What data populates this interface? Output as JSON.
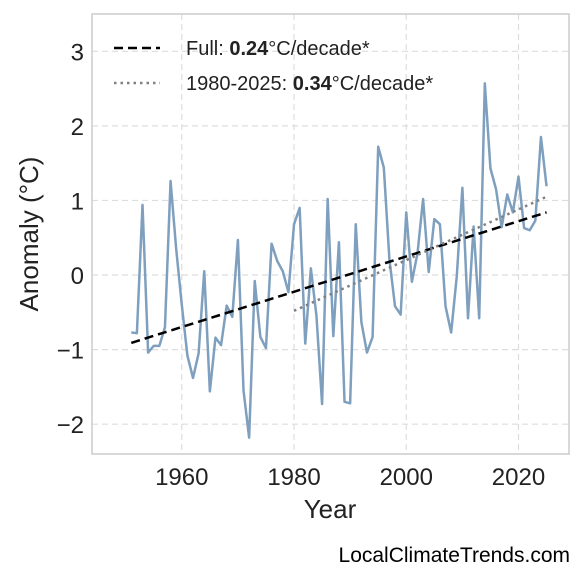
{
  "chart_data": {
    "type": "line",
    "xlabel": "Year",
    "ylabel": "Anomaly (°C)",
    "xlim": [
      1944,
      2029
    ],
    "ylim": [
      -2.4,
      3.5
    ],
    "x_ticks": [
      1960,
      1980,
      2000,
      2020
    ],
    "y_ticks": [
      -2,
      -1,
      0,
      1,
      2,
      3
    ],
    "y_tick_labels": [
      "−2",
      "−1",
      "0",
      "1",
      "2",
      "3"
    ],
    "grid": true,
    "legend_position": "top-left",
    "series": [
      {
        "style": "solid",
        "color": "#7f9fbf",
        "x": [
          1951,
          1952,
          1953,
          1954,
          1955,
          1956,
          1957,
          1958,
          1959,
          1960,
          1961,
          1962,
          1963,
          1964,
          1965,
          1966,
          1967,
          1968,
          1969,
          1970,
          1971,
          1972,
          1973,
          1974,
          1975,
          1976,
          1977,
          1978,
          1979,
          1980,
          1981,
          1982,
          1983,
          1984,
          1985,
          1986,
          1987,
          1988,
          1989,
          1990,
          1991,
          1992,
          1993,
          1994,
          1995,
          1996,
          1997,
          1998,
          1999,
          2000,
          2001,
          2002,
          2003,
          2004,
          2005,
          2006,
          2007,
          2008,
          2009,
          2010,
          2011,
          2012,
          2013,
          2014,
          2015,
          2016,
          2017,
          2018,
          2019,
          2020,
          2021,
          2022,
          2023,
          2024,
          2025
        ],
        "values": [
          -0.77,
          -0.78,
          0.94,
          -1.04,
          -0.95,
          -0.95,
          -0.7,
          1.26,
          0.35,
          -0.4,
          -1.08,
          -1.38,
          -1.05,
          0.05,
          -1.56,
          -0.84,
          -0.94,
          -0.41,
          -0.56,
          0.47,
          -1.55,
          -2.18,
          -0.08,
          -0.83,
          -0.98,
          0.42,
          0.19,
          0.05,
          -0.23,
          0.68,
          0.9,
          -0.92,
          0.09,
          -0.55,
          -1.73,
          1.02,
          -0.82,
          0.44,
          -1.7,
          -1.72,
          0.68,
          -0.63,
          -1.04,
          -0.83,
          1.72,
          1.44,
          0.21,
          -0.42,
          -0.53,
          0.84,
          -0.09,
          0.29,
          1.02,
          0.04,
          0.75,
          0.68,
          -0.42,
          -0.77,
          -0.02,
          1.17,
          -0.58,
          0.65,
          -0.58,
          2.57,
          1.43,
          1.15,
          0.64,
          1.08,
          0.84,
          1.32,
          0.63,
          0.6,
          0.73,
          1.85,
          1.19
        ]
      },
      {
        "style": "dashed",
        "color": "#000000",
        "x": [
          1951,
          2025
        ],
        "values": [
          -0.91,
          0.84
        ]
      },
      {
        "style": "dotted",
        "color": "#808080",
        "x": [
          1980,
          2025
        ],
        "values": [
          -0.48,
          1.05
        ]
      }
    ]
  },
  "legend": {
    "items": [
      {
        "prefix": "Full: ",
        "bold": "0.24",
        "suffix": "°C/decade*",
        "style": "dashed",
        "color": "#000000"
      },
      {
        "prefix": "1980-2025: ",
        "bold": "0.34",
        "suffix": "°C/decade*",
        "style": "dotted",
        "color": "#808080"
      }
    ]
  },
  "watermark": "LocalClimateTrends.com"
}
